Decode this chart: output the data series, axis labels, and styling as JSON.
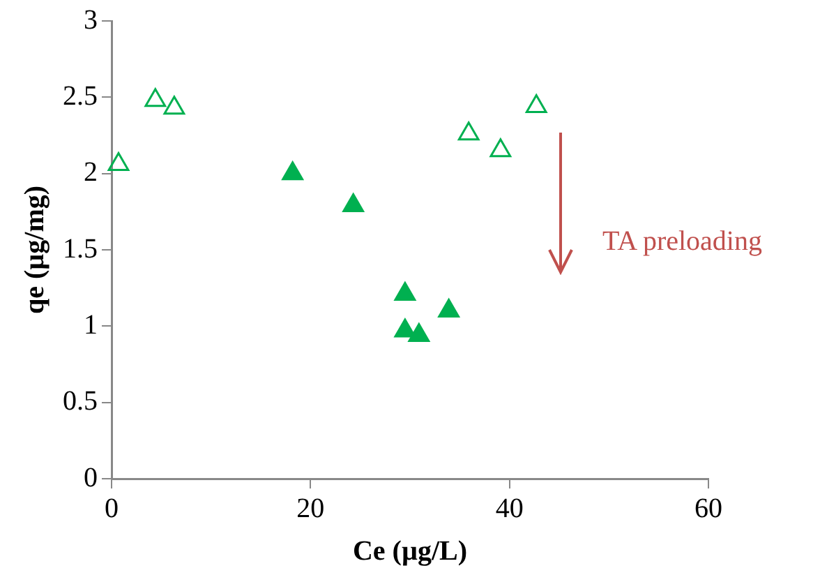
{
  "chart_data": {
    "type": "scatter",
    "xlabel": "Ce (µg/L)",
    "ylabel": "qe (µg/mg)",
    "xlim": [
      0,
      60
    ],
    "xticks": [
      0,
      20,
      40,
      60
    ],
    "ylim": [
      0,
      3
    ],
    "yticks": [
      0,
      0.5,
      1,
      1.5,
      2,
      2.5,
      3
    ],
    "grid": false,
    "legend": false,
    "marker": "triangle",
    "series": [
      {
        "color": "#00b050",
        "x": [
          0.7,
          4.4,
          6.3,
          35.9,
          39.1,
          42.7
        ],
        "values": [
          2.06,
          2.48,
          2.43,
          2.26,
          2.15,
          2.44
        ]
      },
      {
        "color": "#00b050",
        "x": [
          18.2,
          24.3,
          29.5,
          29.5,
          30.9,
          33.9
        ],
        "values": [
          2.0,
          1.79,
          1.21,
          0.97,
          0.94,
          1.1
        ]
      }
    ],
    "annotations": [
      "TA preloading"
    ]
  }
}
